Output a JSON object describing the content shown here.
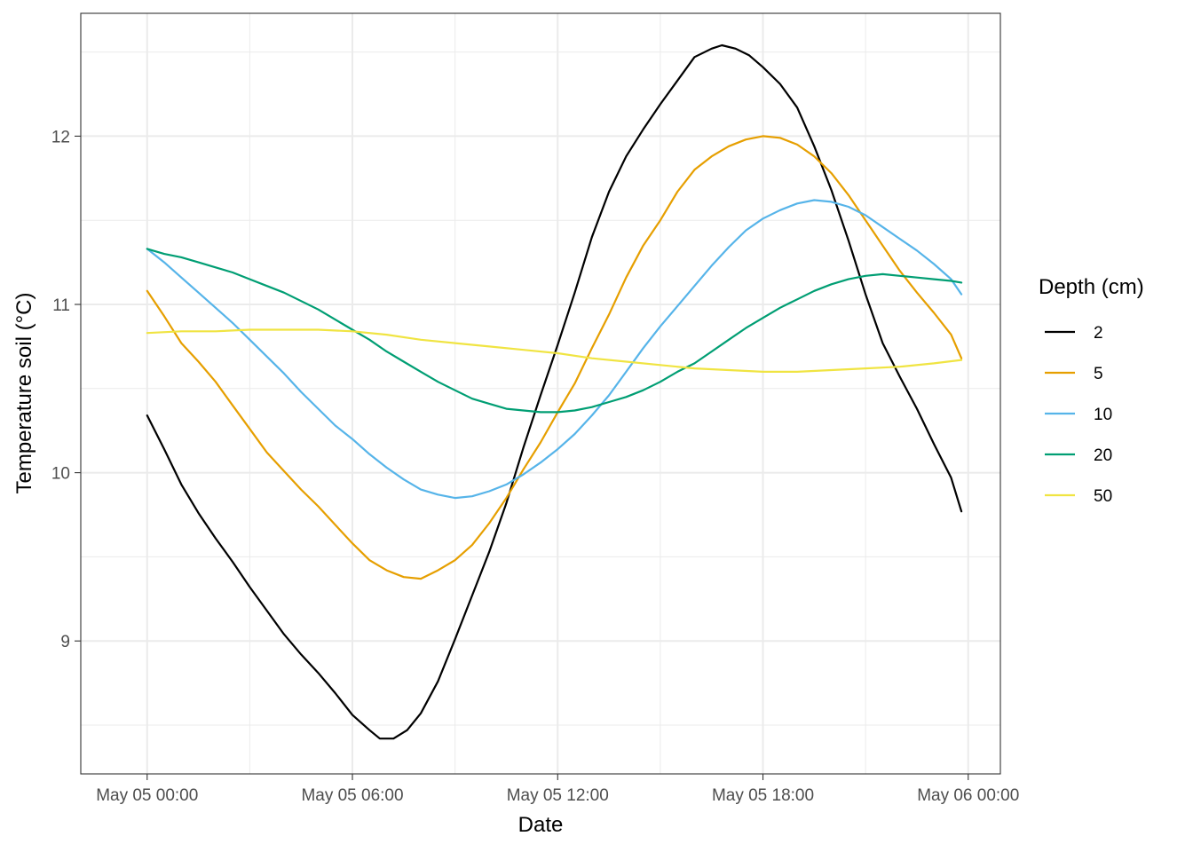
{
  "chart_data": {
    "type": "line",
    "title": "",
    "xlabel": "Date",
    "ylabel": "Temperature soil (°C)",
    "x_unit": "hours since May 05 00:00",
    "xlim": [
      -1.94,
      24.94
    ],
    "ylim": [
      8.21,
      12.73
    ],
    "x_ticks": [
      {
        "value": 0,
        "label": "May 05 00:00"
      },
      {
        "value": 6,
        "label": "May 05 06:00"
      },
      {
        "value": 12,
        "label": "May 05 12:00"
      },
      {
        "value": 18,
        "label": "May 05 18:00"
      },
      {
        "value": 24,
        "label": "May 06 00:00"
      }
    ],
    "x_minor_ticks": [
      3,
      9,
      15,
      21
    ],
    "y_ticks": [
      {
        "value": 9,
        "label": "9"
      },
      {
        "value": 10,
        "label": "10"
      },
      {
        "value": 11,
        "label": "11"
      },
      {
        "value": 12,
        "label": "12"
      }
    ],
    "y_minor_ticks": [
      8.5,
      9.5,
      10.5,
      11.5,
      12.5
    ],
    "grid": true,
    "legend": {
      "title": "Depth (cm)",
      "position": "right"
    },
    "series": [
      {
        "name": "2",
        "color": "#000000",
        "points": [
          [
            0,
            10.34
          ],
          [
            0.5,
            10.14
          ],
          [
            1,
            9.93
          ],
          [
            1.5,
            9.76
          ],
          [
            2,
            9.61
          ],
          [
            2.5,
            9.47
          ],
          [
            3,
            9.32
          ],
          [
            3.5,
            9.18
          ],
          [
            4,
            9.04
          ],
          [
            4.5,
            8.92
          ],
          [
            5,
            8.81
          ],
          [
            5.5,
            8.69
          ],
          [
            6,
            8.56
          ],
          [
            6.5,
            8.47
          ],
          [
            6.8,
            8.42
          ],
          [
            7.2,
            8.42
          ],
          [
            7.6,
            8.47
          ],
          [
            8,
            8.57
          ],
          [
            8.5,
            8.76
          ],
          [
            9,
            9.01
          ],
          [
            9.5,
            9.27
          ],
          [
            10,
            9.53
          ],
          [
            10.5,
            9.82
          ],
          [
            11,
            10.15
          ],
          [
            11.5,
            10.46
          ],
          [
            12,
            10.76
          ],
          [
            12.5,
            11.07
          ],
          [
            13,
            11.4
          ],
          [
            13.5,
            11.67
          ],
          [
            14,
            11.88
          ],
          [
            14.5,
            12.04
          ],
          [
            15,
            12.19
          ],
          [
            15.5,
            12.33
          ],
          [
            16,
            12.47
          ],
          [
            16.5,
            12.52
          ],
          [
            16.8,
            12.54
          ],
          [
            17.2,
            12.52
          ],
          [
            17.6,
            12.48
          ],
          [
            18,
            12.41
          ],
          [
            18.5,
            12.31
          ],
          [
            19,
            12.17
          ],
          [
            19.5,
            11.94
          ],
          [
            20,
            11.68
          ],
          [
            20.5,
            11.38
          ],
          [
            21,
            11.06
          ],
          [
            21.5,
            10.77
          ],
          [
            22,
            10.57
          ],
          [
            22.5,
            10.38
          ],
          [
            23,
            10.17
          ],
          [
            23.5,
            9.97
          ],
          [
            23.8,
            9.77
          ]
        ]
      },
      {
        "name": "5",
        "color": "#E69F00",
        "points": [
          [
            0,
            11.08
          ],
          [
            0.5,
            10.93
          ],
          [
            1,
            10.77
          ],
          [
            1.5,
            10.66
          ],
          [
            2,
            10.54
          ],
          [
            2.5,
            10.4
          ],
          [
            3,
            10.26
          ],
          [
            3.5,
            10.12
          ],
          [
            4,
            10.01
          ],
          [
            4.5,
            9.9
          ],
          [
            5,
            9.8
          ],
          [
            5.5,
            9.69
          ],
          [
            6,
            9.58
          ],
          [
            6.5,
            9.48
          ],
          [
            7,
            9.42
          ],
          [
            7.5,
            9.38
          ],
          [
            8,
            9.37
          ],
          [
            8.5,
            9.42
          ],
          [
            9,
            9.48
          ],
          [
            9.5,
            9.57
          ],
          [
            10,
            9.7
          ],
          [
            10.5,
            9.85
          ],
          [
            11,
            10.02
          ],
          [
            11.5,
            10.18
          ],
          [
            12,
            10.36
          ],
          [
            12.5,
            10.53
          ],
          [
            13,
            10.74
          ],
          [
            13.5,
            10.94
          ],
          [
            14,
            11.16
          ],
          [
            14.5,
            11.35
          ],
          [
            15,
            11.5
          ],
          [
            15.5,
            11.67
          ],
          [
            16,
            11.8
          ],
          [
            16.5,
            11.88
          ],
          [
            17,
            11.94
          ],
          [
            17.5,
            11.98
          ],
          [
            18,
            12.0
          ],
          [
            18.5,
            11.99
          ],
          [
            19,
            11.95
          ],
          [
            19.5,
            11.88
          ],
          [
            20,
            11.78
          ],
          [
            20.5,
            11.65
          ],
          [
            21,
            11.5
          ],
          [
            21.5,
            11.35
          ],
          [
            22,
            11.2
          ],
          [
            22.5,
            11.07
          ],
          [
            23,
            10.95
          ],
          [
            23.5,
            10.82
          ],
          [
            23.8,
            10.68
          ]
        ]
      },
      {
        "name": "10",
        "color": "#56B4E9",
        "points": [
          [
            0,
            11.33
          ],
          [
            0.5,
            11.25
          ],
          [
            1,
            11.16
          ],
          [
            1.5,
            11.07
          ],
          [
            2,
            10.98
          ],
          [
            2.5,
            10.89
          ],
          [
            3,
            10.79
          ],
          [
            3.5,
            10.69
          ],
          [
            4,
            10.59
          ],
          [
            4.5,
            10.48
          ],
          [
            5,
            10.38
          ],
          [
            5.5,
            10.28
          ],
          [
            6,
            10.2
          ],
          [
            6.5,
            10.11
          ],
          [
            7,
            10.03
          ],
          [
            7.5,
            9.96
          ],
          [
            8,
            9.9
          ],
          [
            8.5,
            9.87
          ],
          [
            9,
            9.85
          ],
          [
            9.5,
            9.86
          ],
          [
            10,
            9.89
          ],
          [
            10.5,
            9.93
          ],
          [
            11,
            9.99
          ],
          [
            11.5,
            10.06
          ],
          [
            12,
            10.14
          ],
          [
            12.5,
            10.23
          ],
          [
            13,
            10.34
          ],
          [
            13.5,
            10.46
          ],
          [
            14,
            10.6
          ],
          [
            14.5,
            10.74
          ],
          [
            15,
            10.87
          ],
          [
            15.5,
            10.99
          ],
          [
            16,
            11.11
          ],
          [
            16.5,
            11.23
          ],
          [
            17,
            11.34
          ],
          [
            17.5,
            11.44
          ],
          [
            18,
            11.51
          ],
          [
            18.5,
            11.56
          ],
          [
            19,
            11.6
          ],
          [
            19.5,
            11.62
          ],
          [
            20,
            11.61
          ],
          [
            20.5,
            11.58
          ],
          [
            21,
            11.53
          ],
          [
            21.5,
            11.46
          ],
          [
            22,
            11.39
          ],
          [
            22.5,
            11.32
          ],
          [
            23,
            11.24
          ],
          [
            23.5,
            11.15
          ],
          [
            23.8,
            11.06
          ]
        ]
      },
      {
        "name": "20",
        "color": "#009E73",
        "points": [
          [
            0,
            11.33
          ],
          [
            0.5,
            11.3
          ],
          [
            1,
            11.28
          ],
          [
            1.5,
            11.25
          ],
          [
            2,
            11.22
          ],
          [
            2.5,
            11.19
          ],
          [
            3,
            11.15
          ],
          [
            3.5,
            11.11
          ],
          [
            4,
            11.07
          ],
          [
            4.5,
            11.02
          ],
          [
            5,
            10.97
          ],
          [
            5.5,
            10.91
          ],
          [
            6,
            10.85
          ],
          [
            6.5,
            10.79
          ],
          [
            7,
            10.72
          ],
          [
            7.5,
            10.66
          ],
          [
            8,
            10.6
          ],
          [
            8.5,
            10.54
          ],
          [
            9,
            10.49
          ],
          [
            9.5,
            10.44
          ],
          [
            10,
            10.41
          ],
          [
            10.5,
            10.38
          ],
          [
            11,
            10.37
          ],
          [
            11.5,
            10.36
          ],
          [
            12,
            10.36
          ],
          [
            12.5,
            10.37
          ],
          [
            13,
            10.39
          ],
          [
            13.5,
            10.42
          ],
          [
            14,
            10.45
          ],
          [
            14.5,
            10.49
          ],
          [
            15,
            10.54
          ],
          [
            15.5,
            10.6
          ],
          [
            16,
            10.65
          ],
          [
            16.5,
            10.72
          ],
          [
            17,
            10.79
          ],
          [
            17.5,
            10.86
          ],
          [
            18,
            10.92
          ],
          [
            18.5,
            10.98
          ],
          [
            19,
            11.03
          ],
          [
            19.5,
            11.08
          ],
          [
            20,
            11.12
          ],
          [
            20.5,
            11.15
          ],
          [
            21,
            11.17
          ],
          [
            21.5,
            11.18
          ],
          [
            22,
            11.17
          ],
          [
            22.5,
            11.16
          ],
          [
            23,
            11.15
          ],
          [
            23.5,
            11.14
          ],
          [
            23.8,
            11.13
          ]
        ]
      },
      {
        "name": "50",
        "color": "#F0E442",
        "points": [
          [
            0,
            10.83
          ],
          [
            1,
            10.84
          ],
          [
            2,
            10.84
          ],
          [
            3,
            10.85
          ],
          [
            4,
            10.85
          ],
          [
            5,
            10.85
          ],
          [
            6,
            10.84
          ],
          [
            7,
            10.82
          ],
          [
            8,
            10.79
          ],
          [
            9,
            10.77
          ],
          [
            10,
            10.75
          ],
          [
            11,
            10.73
          ],
          [
            12,
            10.71
          ],
          [
            13,
            10.68
          ],
          [
            14,
            10.66
          ],
          [
            15,
            10.64
          ],
          [
            16,
            10.62
          ],
          [
            17,
            10.61
          ],
          [
            18,
            10.6
          ],
          [
            19,
            10.6
          ],
          [
            20,
            10.61
          ],
          [
            21,
            10.62
          ],
          [
            22,
            10.63
          ],
          [
            23,
            10.65
          ],
          [
            23.8,
            10.67
          ]
        ]
      }
    ]
  }
}
